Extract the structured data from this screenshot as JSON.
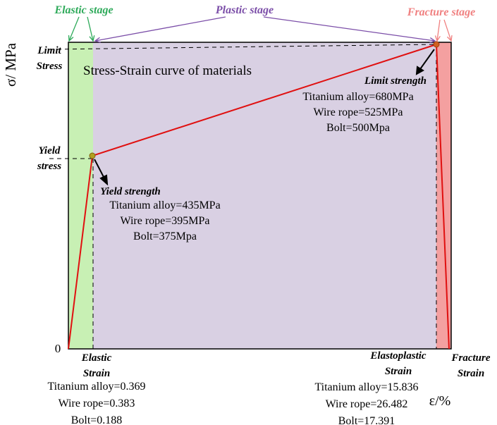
{
  "chart_data": {
    "type": "line",
    "title": "Stress-Strain curve of materials",
    "xlabel": "ε/%",
    "ylabel": "σ/ MPa",
    "y_zero_label": "0",
    "stages": [
      {
        "name": "Elastic stage",
        "color": "#c8f0b4",
        "label_color": "#2eaa5a"
      },
      {
        "name": "Plastic stage",
        "color": "#d9d0e3",
        "label_color": "#7b4ea8"
      },
      {
        "name": "Fracture stage",
        "color": "#f4a0a0",
        "label_color": "#f08080"
      }
    ],
    "y_axis_labels": [
      {
        "lines": [
          "Limit",
          "Stress"
        ]
      },
      {
        "lines": [
          "Yield",
          "stress"
        ]
      }
    ],
    "x_axis_labels": [
      {
        "lines": [
          "Elastic",
          "Strain"
        ]
      },
      {
        "lines": [
          "Elastoplastic",
          "Strain"
        ]
      },
      {
        "lines": [
          "Fracture",
          "Strain"
        ]
      }
    ],
    "curve": {
      "color": "#e01010",
      "points": [
        {
          "strain": 0,
          "stress": 0
        },
        {
          "strain": 0.369,
          "stress": 435
        },
        {
          "strain": 15.836,
          "stress": 680
        },
        {
          "strain": 16.0,
          "stress": 0
        }
      ]
    },
    "annotations": {
      "yield": {
        "heading": "Yield strength",
        "lines": [
          "Titanium alloy=435MPa",
          "Wire rope=395MPa",
          "Bolt=375Mpa"
        ]
      },
      "limit": {
        "heading": "Limit strength",
        "lines": [
          "Titanium alloy=680MPa",
          "Wire rope=525MPa",
          "Bolt=500Mpa"
        ]
      },
      "elastic_strain": {
        "lines": [
          "Titanium alloy=0.369",
          "Wire rope=0.383",
          "Bolt=0.188"
        ]
      },
      "elastoplastic_strain": {
        "lines": [
          "Titanium alloy=15.836",
          "Wire rope=26.482",
          "Bolt=17.391"
        ]
      }
    }
  }
}
